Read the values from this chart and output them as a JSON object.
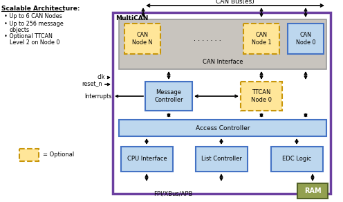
{
  "fig_width": 4.96,
  "fig_height": 2.92,
  "bg_color": "#ffffff",
  "purple_border": "#6B3FA0",
  "gray_box_fill": "#C8C4BE",
  "gray_box_edge": "#999999",
  "blue_box_fill": "#BDD7EE",
  "blue_box_stroke": "#4472C4",
  "optional_fill": "#FFE699",
  "optional_stroke": "#C8960A",
  "ram_fill": "#92A050",
  "ram_stroke": "#526128",
  "ram_text": "#ffffff",
  "text_color": "#000000",
  "title_left": "Scalable Architecture:",
  "bullets": [
    "Up to 6 CAN Nodes",
    "Up to 256 message\n  objects",
    "Optional TTCAN\n  Level 2 on Node 0"
  ],
  "multican_label": "MultiCAN",
  "can_bus_label": "CAN Bus(es)",
  "can_interface_label": "CAN Interface",
  "node_n_label": "CAN\nNode N",
  "node_1_label": "CAN\nNode 1",
  "node_0_label": "CAN\nNode 0",
  "msg_ctrl_label": "Message\nController",
  "ttcan_label": "TTCAN\nNode 0",
  "access_ctrl_label": "Access Controller",
  "cpu_label": "CPU Interface",
  "list_label": "List Controller",
  "edc_label": "EDC Logic",
  "ram_label": "RAM",
  "clk_label": "clk",
  "reset_label": "reset_n",
  "interrupts_label": "Interrupts",
  "fpi_label": "FPI/XBus/APB",
  "optional_label": "= Optional"
}
